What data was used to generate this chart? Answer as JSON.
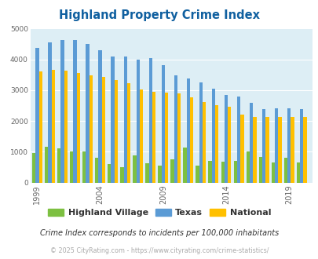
{
  "title": "Highland Property Crime Index",
  "title_color": "#1060a0",
  "background_color": "#ddeef5",
  "years": [
    1999,
    2000,
    2001,
    2002,
    2003,
    2004,
    2005,
    2006,
    2007,
    2008,
    2009,
    2010,
    2011,
    2012,
    2013,
    2014,
    2015,
    2016,
    2017,
    2018,
    2019,
    2020
  ],
  "highland_village": [
    950,
    1170,
    1100,
    1020,
    1000,
    800,
    600,
    500,
    880,
    640,
    560,
    760,
    1140,
    560,
    700,
    680,
    700,
    1020,
    820,
    650,
    800,
    650
  ],
  "texas": [
    4380,
    4560,
    4620,
    4620,
    4500,
    4300,
    4100,
    4100,
    4000,
    4040,
    3800,
    3480,
    3380,
    3250,
    3050,
    2850,
    2780,
    2580,
    2390,
    2400,
    2400,
    2380
  ],
  "national": [
    3600,
    3660,
    3620,
    3560,
    3490,
    3440,
    3320,
    3220,
    3020,
    2950,
    2920,
    2900,
    2770,
    2620,
    2500,
    2450,
    2210,
    2130,
    2130,
    2130,
    2130,
    2120
  ],
  "hv_color": "#7dc041",
  "texas_color": "#5b9bd5",
  "national_color": "#ffc000",
  "ylim": [
    0,
    5000
  ],
  "yticks": [
    0,
    1000,
    2000,
    3000,
    4000,
    5000
  ],
  "xtick_labels": [
    "1999",
    "2004",
    "2009",
    "2014",
    "2019"
  ],
  "xtick_positions": [
    1999,
    2004,
    2009,
    2014,
    2019
  ],
  "footnote1": "Crime Index corresponds to incidents per 100,000 inhabitants",
  "footnote2": "© 2025 CityRating.com - https://www.cityrating.com/crime-statistics/",
  "legend_labels": [
    "Highland Village",
    "Texas",
    "National"
  ]
}
